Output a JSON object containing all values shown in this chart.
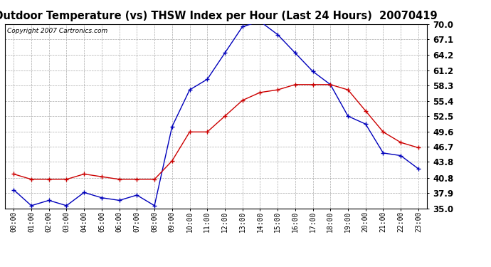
{
  "title": "Outdoor Temperature (vs) THSW Index per Hour (Last 24 Hours)  20070419",
  "copyright": "Copyright 2007 Cartronics.com",
  "x_labels": [
    "00:00",
    "01:00",
    "02:00",
    "03:00",
    "04:00",
    "05:00",
    "06:00",
    "07:00",
    "08:00",
    "09:00",
    "10:00",
    "11:00",
    "12:00",
    "13:00",
    "14:00",
    "15:00",
    "16:00",
    "17:00",
    "18:00",
    "19:00",
    "20:00",
    "21:00",
    "22:00",
    "23:00"
  ],
  "temp_blue": [
    38.5,
    35.5,
    36.5,
    35.5,
    38.0,
    37.0,
    36.5,
    37.5,
    35.5,
    50.5,
    57.5,
    59.5,
    64.5,
    69.5,
    70.5,
    68.0,
    64.5,
    61.0,
    58.5,
    52.5,
    51.0,
    45.5,
    45.0,
    42.5
  ],
  "temp_red": [
    41.5,
    40.5,
    40.5,
    40.5,
    41.5,
    41.0,
    40.5,
    40.5,
    40.5,
    44.0,
    49.5,
    49.5,
    52.5,
    55.5,
    57.0,
    57.5,
    58.5,
    58.5,
    58.5,
    57.5,
    53.5,
    49.5,
    47.5,
    46.5
  ],
  "ylim": [
    35.0,
    70.0
  ],
  "yticks": [
    35.0,
    37.9,
    40.8,
    43.8,
    46.7,
    49.6,
    52.5,
    55.4,
    58.3,
    61.2,
    64.2,
    67.1,
    70.0
  ],
  "blue_color": "#0000bb",
  "red_color": "#cc0000",
  "bg_color": "#ffffff",
  "grid_color": "#aaaaaa",
  "title_fontsize": 10.5,
  "copyright_fontsize": 6.5,
  "tick_fontsize": 7.0,
  "ytick_fontsize": 8.5
}
